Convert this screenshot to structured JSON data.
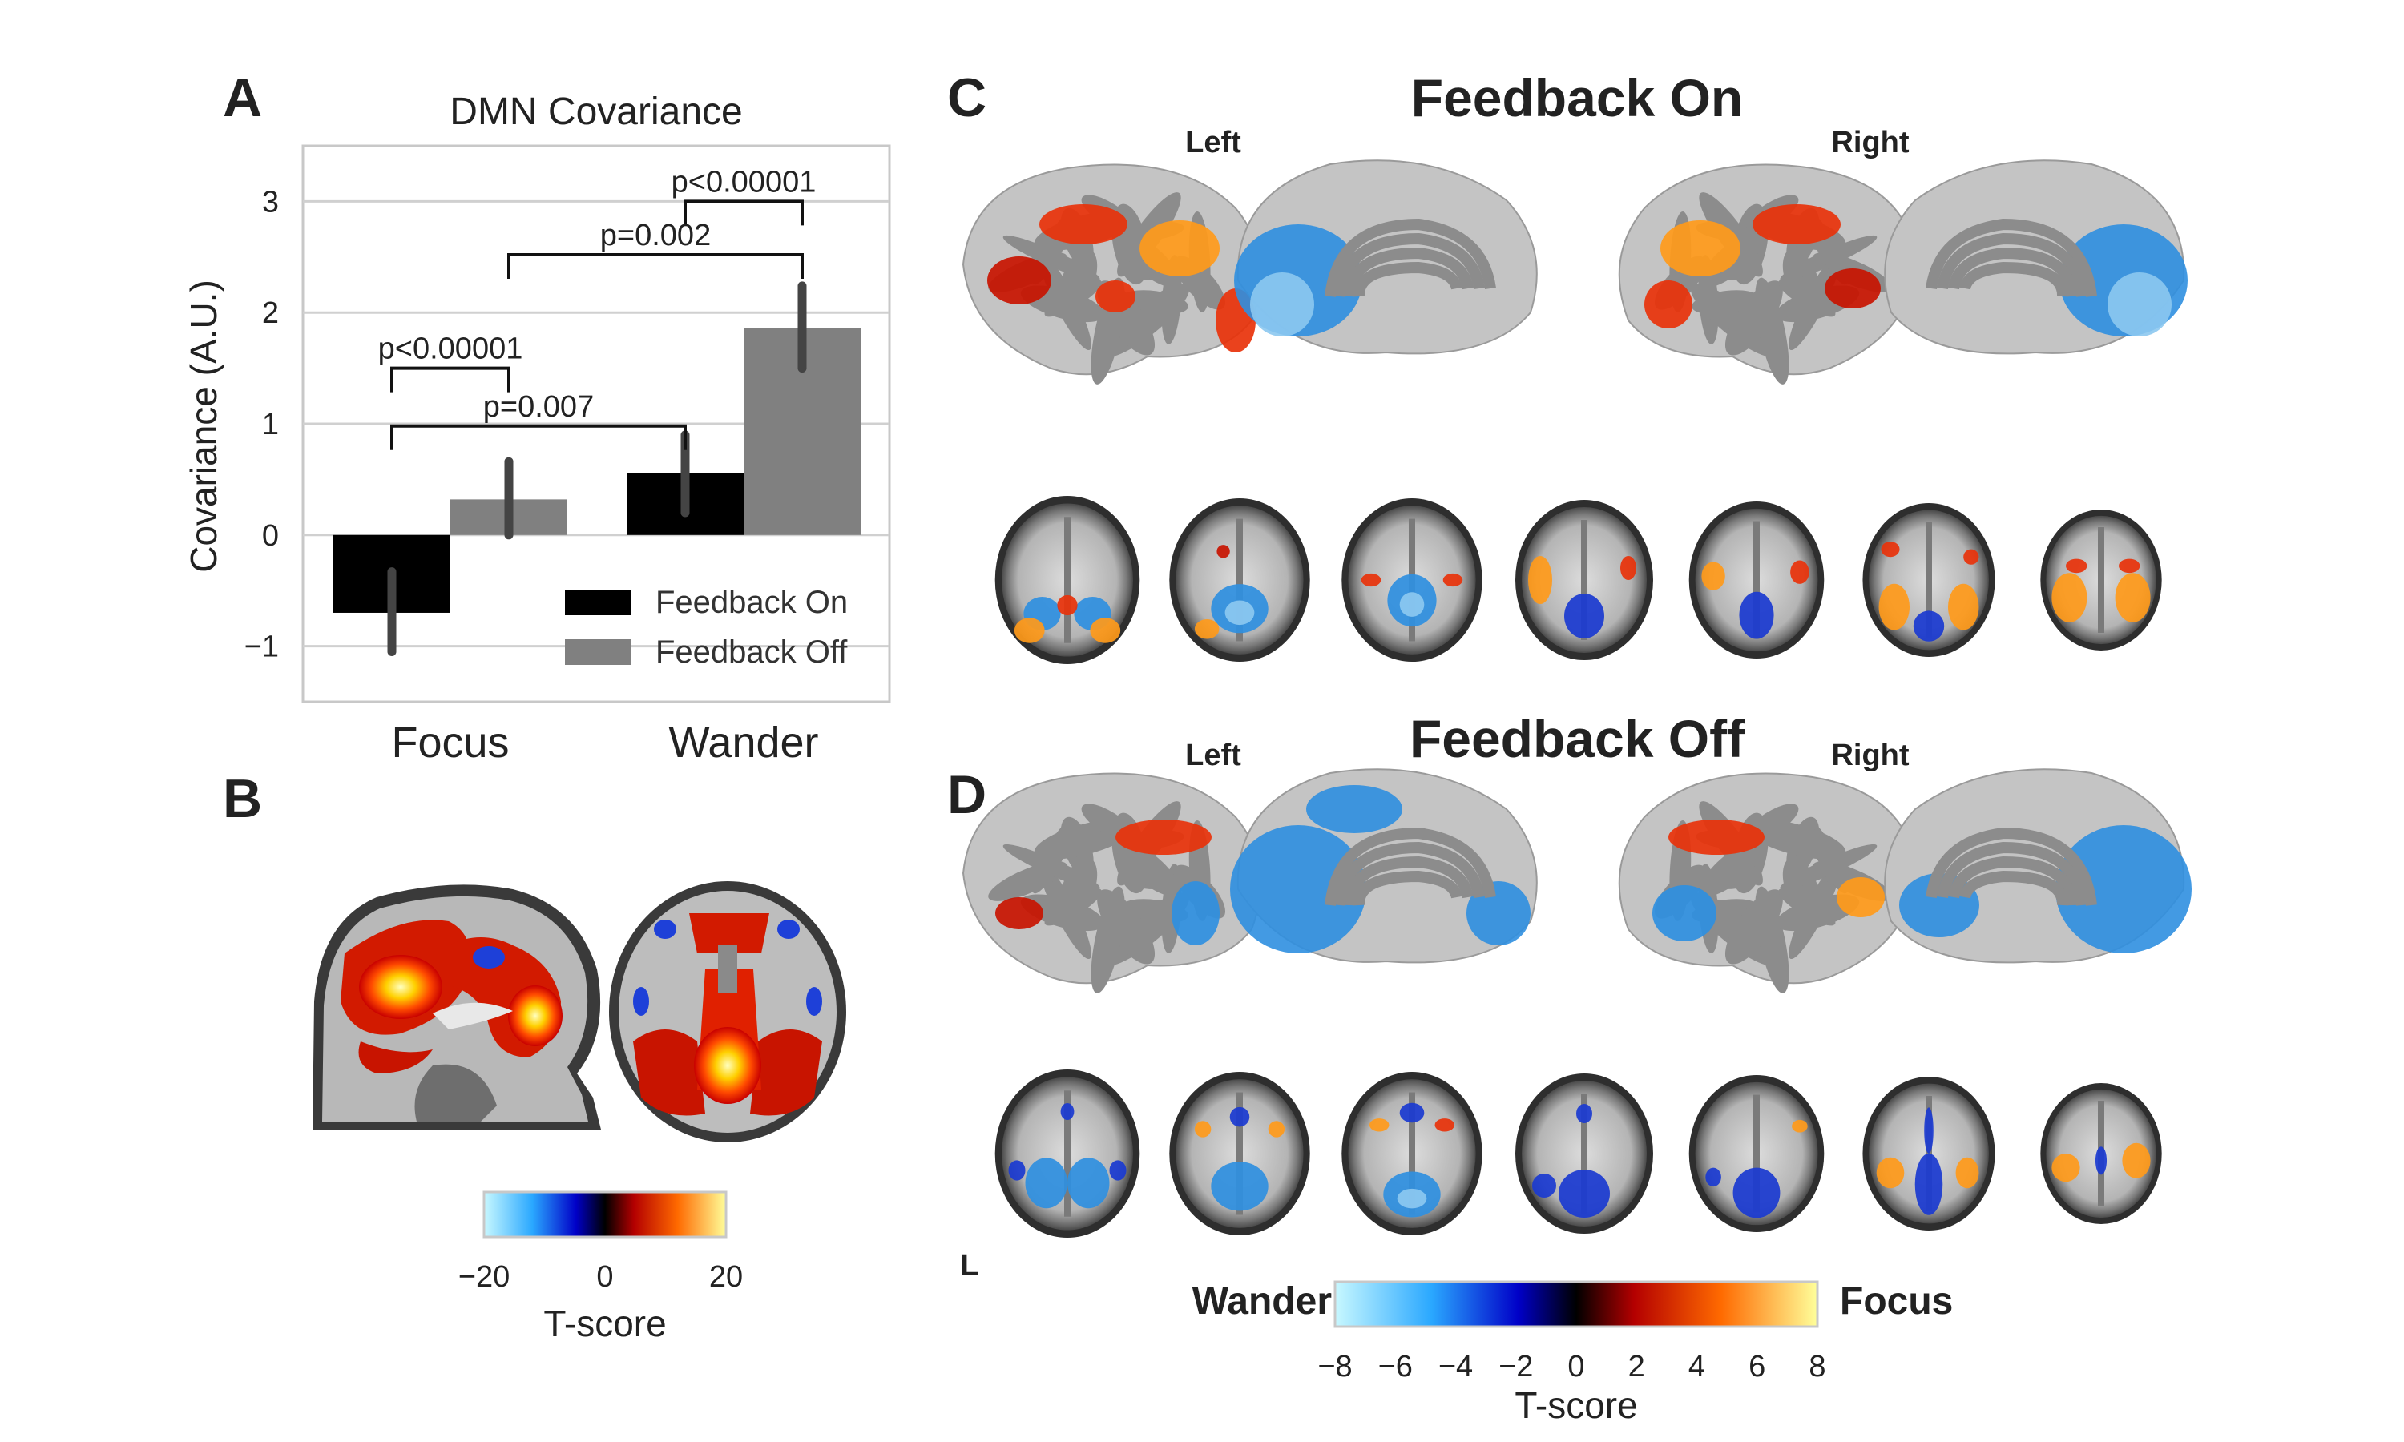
{
  "panels": {
    "a": "A",
    "b": "B",
    "c": "C",
    "d": "D"
  },
  "panel_c": {
    "title": "Feedback On",
    "left_label": "Left",
    "right_label": "Right"
  },
  "panel_d": {
    "title": "Feedback Off",
    "left_label": "Left",
    "right_label": "Right",
    "orientation_label": "L"
  },
  "colorbar_b": {
    "ticks": [
      "−20",
      "0",
      "20"
    ],
    "label": "T-score",
    "colors": [
      "#c8f8ff",
      "#2aa8ff",
      "#0000c8",
      "#000000",
      "#b40000",
      "#ff6a00",
      "#ffff9a"
    ]
  },
  "colorbar_cd": {
    "ticks": [
      "−8",
      "−6",
      "−4",
      "−2",
      "0",
      "2",
      "4",
      "6",
      "8"
    ],
    "label": "T-score",
    "left_end": "Wander",
    "right_end": "Focus",
    "colors": [
      "#c8f8ff",
      "#2aa8ff",
      "#0000c8",
      "#000000",
      "#b40000",
      "#ff6a00",
      "#ffff9a"
    ]
  },
  "chart_data": {
    "type": "bar",
    "title": "DMN Covariance",
    "ylabel": "Covariance (A.U.)",
    "xlabel": "",
    "categories": [
      "Focus",
      "Wander"
    ],
    "ylim": [
      -1.5,
      3.5
    ],
    "yticks": [
      -1,
      0,
      1,
      2,
      3
    ],
    "ytick_labels": [
      "−1",
      "0",
      "1",
      "2",
      "3"
    ],
    "grid": true,
    "legend": "bottom-right",
    "series": [
      {
        "name": "Feedback On",
        "color": "#000000",
        "values": [
          -0.7,
          0.56
        ],
        "err_low": [
          -1.05,
          0.2
        ],
        "err_high": [
          -0.33,
          0.9
        ]
      },
      {
        "name": "Feedback Off",
        "color": "#808080",
        "values": [
          0.32,
          1.86
        ],
        "err_low": [
          0.0,
          1.5
        ],
        "err_high": [
          0.66,
          2.24
        ]
      }
    ],
    "annotations": [
      {
        "text": "p<0.00001",
        "from": [
          1,
          0
        ],
        "to": [
          1,
          1
        ],
        "y": 3.0
      },
      {
        "text": "p=0.002",
        "from": [
          0,
          1
        ],
        "to": [
          1,
          1
        ],
        "y": 2.52
      },
      {
        "text": "p<0.00001",
        "from": [
          0,
          0
        ],
        "to": [
          0,
          1
        ],
        "y": 1.5
      },
      {
        "text": "p=0.007",
        "from": [
          0,
          0
        ],
        "to": [
          1,
          0
        ],
        "y": 0.98
      }
    ]
  }
}
